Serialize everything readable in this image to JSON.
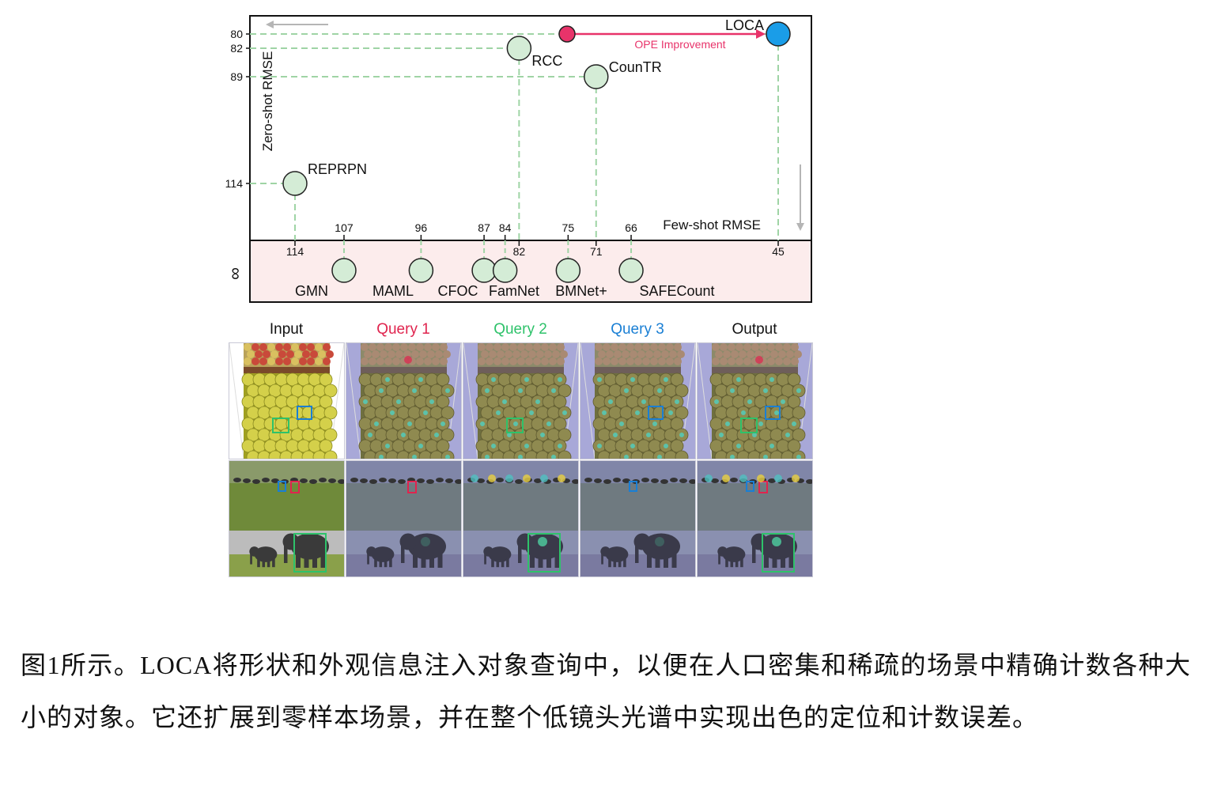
{
  "chart_data": {
    "type": "scatter",
    "ylabel": "Zero-shot RMSE",
    "xlabel": "Few-shot RMSE",
    "y_ticks": [
      "80",
      "82",
      "89",
      "114"
    ],
    "bottom_y_label": "∞",
    "annotation": "OPE Improvement",
    "points_top": [
      {
        "name": "REPRPN",
        "few_shot_rmse": 114,
        "zero_shot_rmse": 114
      },
      {
        "name": "RCC",
        "few_shot_rmse": 82,
        "zero_shot_rmse": 82
      },
      {
        "name": "CounTR",
        "few_shot_rmse": 71,
        "zero_shot_rmse": 89
      },
      {
        "name": "LOCA",
        "few_shot_rmse": 45,
        "zero_shot_rmse": 80
      }
    ],
    "points_bottom": [
      {
        "name": "GMN",
        "few_shot_rmse": 107
      },
      {
        "name": "MAML",
        "few_shot_rmse": 96
      },
      {
        "name": "CFOC",
        "few_shot_rmse": 87
      },
      {
        "name": "FamNet",
        "few_shot_rmse": 84
      },
      {
        "name": "BMNet+",
        "few_shot_rmse": 75
      },
      {
        "name": "SAFECount",
        "few_shot_rmse": 66
      }
    ],
    "x_tick_labels_top": [
      "107",
      "96",
      "87",
      "84",
      "75",
      "66"
    ],
    "x_tick_labels_bottom": [
      "114",
      "82",
      "71",
      "45"
    ],
    "colors": {
      "point": "#d4ecd6",
      "loca": "#1a9de8",
      "ope": "#e8336a",
      "grid": "#9fd4a5",
      "band": "#fcecec"
    }
  },
  "panels": {
    "titles": [
      "Input",
      "Query 1",
      "Query 2",
      "Query 3",
      "Output"
    ],
    "title_colors": [
      "#111111",
      "#e0244e",
      "#2ec26a",
      "#1a7fd4",
      "#111111"
    ]
  },
  "caption": "图1所示。LOCA将形状和外观信息注入对象查询中，以便在人口密集和稀疏的场景中精确计数各种大小的对象。它还扩展到零样本场景，并在整个低镜头光谱中实现出色的定位和计数误差。"
}
